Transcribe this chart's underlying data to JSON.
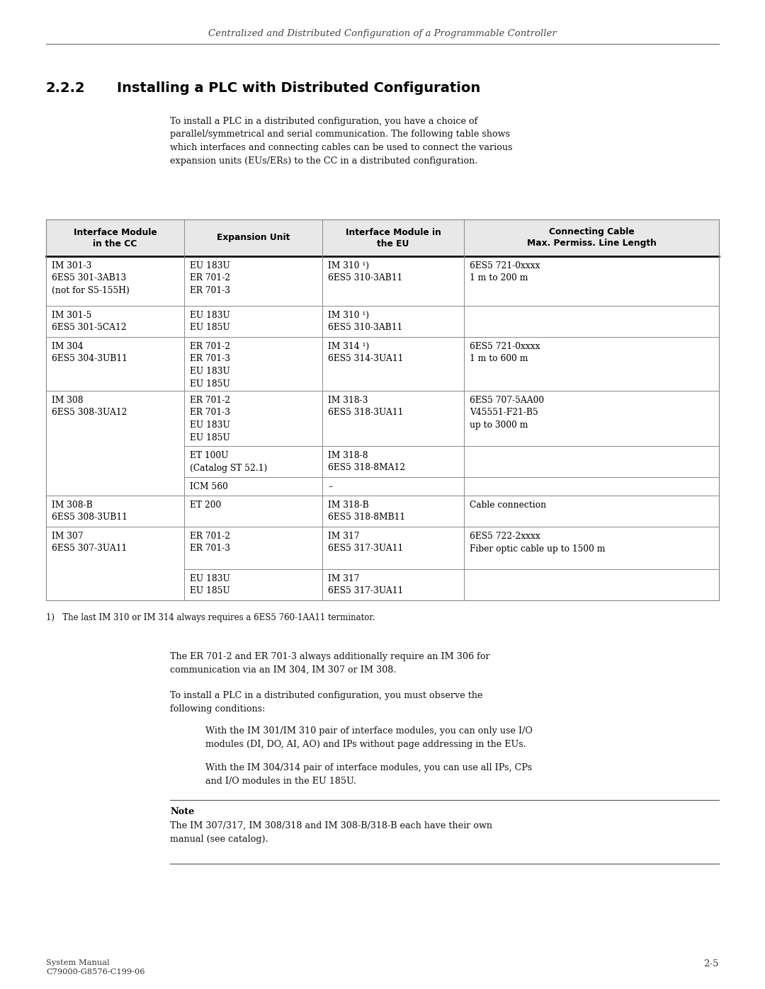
{
  "page_header": "Centralized and Distributed Configuration of a Programmable Controller",
  "section_title": "2.2.2    Installing a PLC with Distributed Configuration",
  "intro_text": "To install a PLC in a distributed configuration, you have a choice of\nparallel/symmetrical and serial communication. The following table shows\nwhich interfaces and connecting cables can be used to connect the various\nexpansion units (EUs/ERs) to the CC in a distributed configuration.",
  "table_headers": [
    "Interface Module\nin the CC",
    "Expansion Unit",
    "Interface Module in\nthe EU",
    "Connecting Cable\nMax. Permiss. Line Length"
  ],
  "footnote": "1)    The last IM 310 or IM 314 always requires a 6ES5 760-1AA11 terminator.",
  "para1": "The ER 701-2 and ER 701-3 always additionally require an IM 306 for\ncommunication via an IM 304, IM 307 or IM 308.",
  "para2": "To install a PLC in a distributed configuration, you must observe the\nfollowing conditions:",
  "bullet1": "With the IM 301/IM 310 pair of interface modules, you can only use I/O\nmodules (DI, DO, AI, AO) and IPs without page addressing in the EUs.",
  "bullet2": "With the IM 304/314 pair of interface modules, you can use all IPs, CPs\nand I/O modules in the EU 185U.",
  "note_label": "Note",
  "note_text": "The IM 307/317, IM 308/318 and IM 308-B/318-B each have their own\nmanual (see catalog).",
  "footer_left": "System Manual\nC79000-G8576-C199-06",
  "footer_right": "2-5"
}
